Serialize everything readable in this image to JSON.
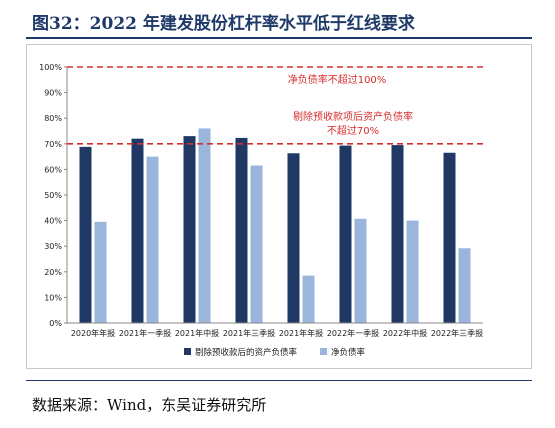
{
  "title": "图32：2022 年建发股份杠杆率水平低于红线要求",
  "source": "数据来源：Wind，东吴证券研究所",
  "colors": {
    "series1": "#1f3864",
    "series2": "#9ab6dd",
    "refline": "#d62e2e",
    "annotation": "#d62e2e"
  },
  "chart_data": {
    "type": "bar",
    "categories": [
      "2020年年报",
      "2021年一季报",
      "2021年中报",
      "2021年三季报",
      "2021年年报",
      "2022年一季报",
      "2022年中报",
      "2022年三季报"
    ],
    "series": [
      {
        "name": "剔除预收款后的资产负债率",
        "values": [
          68.8,
          72.0,
          73.0,
          72.3,
          66.3,
          69.3,
          69.5,
          66.5
        ]
      },
      {
        "name": "净负债率",
        "values": [
          39.5,
          65.0,
          76.0,
          61.5,
          18.5,
          40.7,
          40.0,
          29.2
        ]
      }
    ],
    "ylim": [
      0,
      100
    ],
    "yticks": [
      "0%",
      "10%",
      "20%",
      "30%",
      "40%",
      "50%",
      "60%",
      "70%",
      "80%",
      "90%",
      "100%"
    ],
    "ytick_values": [
      0,
      10,
      20,
      30,
      40,
      50,
      60,
      70,
      80,
      90,
      100
    ],
    "reference_lines": [
      {
        "value": 100,
        "label": "净负债率不超过100%"
      },
      {
        "value": 70,
        "label_line1": "剔除预收款项后资产负债率",
        "label_line2": "不超过70%"
      }
    ],
    "legend_position": "bottom",
    "grid": false
  }
}
